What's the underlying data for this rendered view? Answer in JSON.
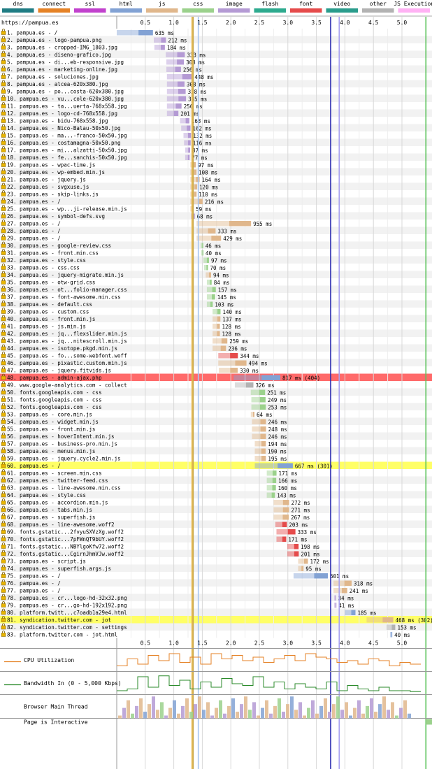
{
  "legend": [
    {
      "label": "dns",
      "color": "#1f7c83"
    },
    {
      "label": "connect",
      "color": "#e58226"
    },
    {
      "label": "ssl",
      "color": "#c141cd"
    },
    {
      "label": "html",
      "color": "#82a2d4"
    },
    {
      "label": "js",
      "color": "#e0b78c"
    },
    {
      "label": "css",
      "color": "#9bd18c"
    },
    {
      "label": "image",
      "color": "#b49ad4"
    },
    {
      "label": "flash",
      "color": "#2daa8e"
    },
    {
      "label": "font",
      "color": "#e54b4b"
    },
    {
      "label": "video",
      "color": "#2a9c8c"
    },
    {
      "label": "other",
      "color": "#b2b2b2"
    },
    {
      "label": "JS Execution",
      "color": "#ffb2f4"
    }
  ],
  "page_url": "https://pampua.es",
  "bottom_labels": {
    "cpu": "CPU Utilization",
    "bandwidth": "Bandwidth In (0 - 5,000 Kbps)",
    "main_thread": "Browser Main Thread",
    "interactive": "Page is Interactive"
  },
  "chart_data": {
    "type": "waterfall",
    "x_unit": "seconds",
    "x_ticks": [
      "0.5",
      "1.0",
      "1.5",
      "2.0",
      "2.5",
      "3.0",
      "3.5",
      "4.0",
      "4.5",
      "5.0"
    ],
    "xlim": [
      0,
      5.18
    ],
    "markers": [
      {
        "name": "start render",
        "t": 1.32,
        "color": "#e8b84a"
      },
      {
        "name": "dom interactive",
        "t": 1.34,
        "color": "#c9a84a"
      },
      {
        "name": "dom content loaded",
        "t": 1.43,
        "color": "#a7c6f0"
      },
      {
        "name": "document complete",
        "t": 3.75,
        "color": "#2b2bb0"
      },
      {
        "name": "onload",
        "t": 3.9,
        "color": "#a7a0f0"
      },
      {
        "name": "fully loaded",
        "t": 5.42,
        "color": "#5ac25a"
      }
    ],
    "requests": [
      {
        "n": 1,
        "label": "pampua.es - /",
        "type": "html",
        "start": 0.0,
        "dur": 0.635,
        "text": "635 ms"
      },
      {
        "n": 2,
        "label": "pampua.es - logo-pampua.png",
        "type": "image",
        "start": 0.65,
        "dur": 0.212,
        "text": "212 ms"
      },
      {
        "n": 3,
        "label": "pampua.es - cropped-IMG_1803.jpg",
        "type": "image",
        "start": 0.66,
        "dur": 0.184,
        "text": "184 ms"
      },
      {
        "n": 4,
        "label": "pampua.es - diseno-grafico.jpg",
        "type": "image",
        "start": 0.86,
        "dur": 0.333,
        "text": "333 ms"
      },
      {
        "n": 5,
        "label": "pampua.es - di...eb-responsive.jpg",
        "type": "image",
        "start": 0.87,
        "dur": 0.308,
        "text": "308 ms"
      },
      {
        "n": 6,
        "label": "pampua.es - marketing-online.jpg",
        "type": "image",
        "start": 0.87,
        "dur": 0.256,
        "text": "256 ms"
      },
      {
        "n": 7,
        "label": "pampua.es - soluciones.jpg",
        "type": "image",
        "start": 0.88,
        "dur": 0.448,
        "text": "448 ms"
      },
      {
        "n": 8,
        "label": "pampua.es - alcea-620x380.jpg",
        "type": "image",
        "start": 0.88,
        "dur": 0.308,
        "text": "308 ms"
      },
      {
        "n": 9,
        "label": "pampua.es - po...costa-620x380.jpg",
        "type": "image",
        "start": 0.88,
        "dur": 0.328,
        "text": "328 ms"
      },
      {
        "n": 10,
        "label": "pampua.es - vu...cole-620x380.jpg",
        "type": "image",
        "start": 0.88,
        "dur": 0.335,
        "text": "335 ms"
      },
      {
        "n": 11,
        "label": "pampua.es - ta...uerta-768x558.jpg",
        "type": "image",
        "start": 0.88,
        "dur": 0.256,
        "text": "256 ms"
      },
      {
        "n": 12,
        "label": "pampua.es - logo-cd-768x558.jpg",
        "type": "image",
        "start": 0.88,
        "dur": 0.201,
        "text": "201 ms"
      },
      {
        "n": 13,
        "label": "pampua.es - bidu-768x558.jpg",
        "type": "image",
        "start": 1.11,
        "dur": 0.163,
        "text": "163 ms"
      },
      {
        "n": 14,
        "label": "pampua.es - Nico-Balau-50x50.jpg",
        "type": "image",
        "start": 1.13,
        "dur": 0.162,
        "text": "162 ms"
      },
      {
        "n": 15,
        "label": "pampua.es - ma...-franco-50x50.jpg",
        "type": "image",
        "start": 1.17,
        "dur": 0.132,
        "text": "132 ms"
      },
      {
        "n": 16,
        "label": "pampua.es - costamagna-50x50.png",
        "type": "image",
        "start": 1.18,
        "dur": 0.116,
        "text": "116 ms"
      },
      {
        "n": 17,
        "label": "pampua.es - mi...alzatti-50x50.jpg",
        "type": "image",
        "start": 1.2,
        "dur": 0.087,
        "text": "87 ms"
      },
      {
        "n": 18,
        "label": "pampua.es - fe...sanchis-50x50.jpg",
        "type": "image",
        "start": 1.2,
        "dur": 0.077,
        "text": "77 ms"
      },
      {
        "n": 19,
        "label": "pampua.es - wpac-time.js",
        "type": "js",
        "start": 1.29,
        "dur": 0.097,
        "text": "97 ms"
      },
      {
        "n": 20,
        "label": "pampua.es - wp-embed.min.js",
        "type": "js",
        "start": 1.29,
        "dur": 0.108,
        "text": "108 ms"
      },
      {
        "n": 21,
        "label": "pampua.es - jquery.js",
        "type": "js",
        "start": 1.29,
        "dur": 0.164,
        "text": "164 ms"
      },
      {
        "n": 22,
        "label": "pampua.es - svgxuse.js",
        "type": "js",
        "start": 1.29,
        "dur": 0.12,
        "text": "120 ms"
      },
      {
        "n": 23,
        "label": "pampua.es - skip-links.js",
        "type": "js",
        "start": 1.29,
        "dur": 0.11,
        "text": "110 ms"
      },
      {
        "n": 24,
        "label": "pampua.es - /",
        "type": "js",
        "start": 1.29,
        "dur": 0.216,
        "text": "216 ms"
      },
      {
        "n": 25,
        "label": "pampua.es - wp...ji-release.min.js",
        "type": "js",
        "start": 1.29,
        "dur": 0.059,
        "text": "59 ms"
      },
      {
        "n": 26,
        "label": "pampua.es - symbol-defs.svg",
        "type": "image",
        "start": 1.3,
        "dur": 0.068,
        "text": "68 ms"
      },
      {
        "n": 27,
        "label": "pampua.es - /",
        "type": "js",
        "start": 1.4,
        "dur": 0.955,
        "text": "955 ms"
      },
      {
        "n": 28,
        "label": "pampua.es - /",
        "type": "js",
        "start": 1.4,
        "dur": 0.333,
        "text": "333 ms"
      },
      {
        "n": 29,
        "label": "pampua.es - /",
        "type": "js",
        "start": 1.4,
        "dur": 0.429,
        "text": "429 ms"
      },
      {
        "n": 30,
        "label": "pampua.es - google-review.css",
        "type": "css",
        "start": 1.47,
        "dur": 0.046,
        "text": "46 ms"
      },
      {
        "n": 31,
        "label": "pampua.es - front.min.css",
        "type": "css",
        "start": 1.48,
        "dur": 0.04,
        "text": "40 ms"
      },
      {
        "n": 32,
        "label": "pampua.es - style.css",
        "type": "css",
        "start": 1.52,
        "dur": 0.097,
        "text": "97 ms"
      },
      {
        "n": 33,
        "label": "pampua.es - css.css",
        "type": "css",
        "start": 1.53,
        "dur": 0.07,
        "text": "70 ms"
      },
      {
        "n": 34,
        "label": "pampua.es - jquery-migrate.min.js",
        "type": "js",
        "start": 1.56,
        "dur": 0.094,
        "text": "94 ms"
      },
      {
        "n": 35,
        "label": "pampua.es - otw-grid.css",
        "type": "css",
        "start": 1.58,
        "dur": 0.084,
        "text": "84 ms"
      },
      {
        "n": 36,
        "label": "pampua.es - ot...folio-manager.css",
        "type": "css",
        "start": 1.58,
        "dur": 0.157,
        "text": "157 ms"
      },
      {
        "n": 37,
        "label": "pampua.es - font-awesome.min.css",
        "type": "css",
        "start": 1.58,
        "dur": 0.145,
        "text": "145 ms"
      },
      {
        "n": 38,
        "label": "pampua.es - default.css",
        "type": "css",
        "start": 1.58,
        "dur": 0.103,
        "text": "103 ms"
      },
      {
        "n": 39,
        "label": "pampua.es - custom.css",
        "type": "css",
        "start": 1.68,
        "dur": 0.14,
        "text": "140 ms"
      },
      {
        "n": 40,
        "label": "pampua.es - front.min.js",
        "type": "js",
        "start": 1.68,
        "dur": 0.137,
        "text": "137 ms"
      },
      {
        "n": 41,
        "label": "pampua.es - js.min.js",
        "type": "js",
        "start": 1.68,
        "dur": 0.128,
        "text": "128 ms"
      },
      {
        "n": 42,
        "label": "pampua.es - jq...flexslider.min.js",
        "type": "js",
        "start": 1.68,
        "dur": 0.128,
        "text": "128 ms"
      },
      {
        "n": 43,
        "label": "pampua.es - jq...nitescroll.min.js",
        "type": "js",
        "start": 1.68,
        "dur": 0.259,
        "text": "259 ms"
      },
      {
        "n": 44,
        "label": "pampua.es - isotope.pkgd.min.js",
        "type": "js",
        "start": 1.68,
        "dur": 0.236,
        "text": "236 ms"
      },
      {
        "n": 45,
        "label": "pampua.es - fo...some-webfont.woff",
        "type": "font",
        "start": 1.78,
        "dur": 0.344,
        "text": "344 ms"
      },
      {
        "n": 46,
        "label": "pampua.es - pixastic.custom.min.js",
        "type": "js",
        "start": 1.78,
        "dur": 0.494,
        "text": "494 ms"
      },
      {
        "n": 47,
        "label": "pampua.es - jquery.fitvids.js",
        "type": "js",
        "start": 1.79,
        "dur": 0.33,
        "text": "330 ms"
      },
      {
        "n": 48,
        "label": "pampua.es - admin-ajax.php",
        "type": "html",
        "start": 2.05,
        "dur": 0.817,
        "text": "817 ms (404)",
        "highlight": "error"
      },
      {
        "n": 49,
        "label": "www.google-analytics.com - collect",
        "type": "other",
        "start": 2.07,
        "dur": 0.326,
        "text": "326 ms"
      },
      {
        "n": 50,
        "label": "fonts.googleapis.com - css",
        "type": "css",
        "start": 2.35,
        "dur": 0.251,
        "text": "251 ms"
      },
      {
        "n": 51,
        "label": "fonts.googleapis.com - css",
        "type": "css",
        "start": 2.36,
        "dur": 0.249,
        "text": "249 ms"
      },
      {
        "n": 52,
        "label": "fonts.googleapis.com - css",
        "type": "css",
        "start": 2.36,
        "dur": 0.253,
        "text": "253 ms"
      },
      {
        "n": 53,
        "label": "pampua.es - core.min.js",
        "type": "js",
        "start": 2.35,
        "dur": 0.064,
        "text": "64 ms"
      },
      {
        "n": 54,
        "label": "pampua.es - widget.min.js",
        "type": "js",
        "start": 2.37,
        "dur": 0.246,
        "text": "246 ms"
      },
      {
        "n": 55,
        "label": "pampua.es - front.min.js",
        "type": "js",
        "start": 2.37,
        "dur": 0.248,
        "text": "248 ms"
      },
      {
        "n": 56,
        "label": "pampua.es - hoverIntent.min.js",
        "type": "js",
        "start": 2.37,
        "dur": 0.246,
        "text": "246 ms"
      },
      {
        "n": 57,
        "label": "pampua.es - business-pro.min.js",
        "type": "js",
        "start": 2.42,
        "dur": 0.194,
        "text": "194 ms"
      },
      {
        "n": 58,
        "label": "pampua.es - menus.min.js",
        "type": "js",
        "start": 2.42,
        "dur": 0.19,
        "text": "190 ms"
      },
      {
        "n": 59,
        "label": "pampua.es - jquery.cycle2.min.js",
        "type": "js",
        "start": 2.42,
        "dur": 0.195,
        "text": "195 ms"
      },
      {
        "n": 60,
        "label": "pampua.es - /",
        "type": "html",
        "start": 2.42,
        "dur": 0.667,
        "text": "667 ms (301)",
        "highlight": "redirect"
      },
      {
        "n": 61,
        "label": "pampua.es - screen.min.css",
        "type": "css",
        "start": 2.63,
        "dur": 0.171,
        "text": "171 ms"
      },
      {
        "n": 62,
        "label": "pampua.es - twitter-feed.css",
        "type": "css",
        "start": 2.63,
        "dur": 0.166,
        "text": "166 ms"
      },
      {
        "n": 63,
        "label": "pampua.es - line-awesome.min.css",
        "type": "css",
        "start": 2.63,
        "dur": 0.16,
        "text": "160 ms"
      },
      {
        "n": 64,
        "label": "pampua.es - style.css",
        "type": "css",
        "start": 2.63,
        "dur": 0.143,
        "text": "143 ms"
      },
      {
        "n": 65,
        "label": "pampua.es - accordion.min.js",
        "type": "js",
        "start": 2.75,
        "dur": 0.272,
        "text": "272 ms"
      },
      {
        "n": 66,
        "label": "pampua.es - tabs.min.js",
        "type": "js",
        "start": 2.75,
        "dur": 0.271,
        "text": "271 ms"
      },
      {
        "n": 67,
        "label": "pampua.es - superfish.js",
        "type": "js",
        "start": 2.75,
        "dur": 0.267,
        "text": "267 ms"
      },
      {
        "n": 68,
        "label": "pampua.es - line-awesome.woff2",
        "type": "font",
        "start": 2.78,
        "dur": 0.203,
        "text": "203 ms"
      },
      {
        "n": 69,
        "label": "fonts.gstatic...2fvyuSXVzXg.woff2",
        "type": "font",
        "start": 2.8,
        "dur": 0.333,
        "text": "333 ms"
      },
      {
        "n": 70,
        "label": "fonts.gstatic...7pFWnQT9bUY.woff2",
        "type": "font",
        "start": 2.8,
        "dur": 0.171,
        "text": "171 ms"
      },
      {
        "n": 71,
        "label": "fonts.gstatic...NBYlgoKfw72.woff2",
        "type": "font",
        "start": 2.99,
        "dur": 0.198,
        "text": "198 ms"
      },
      {
        "n": 72,
        "label": "fonts.gstatic...CgirnJhmVJw.woff2",
        "type": "font",
        "start": 2.99,
        "dur": 0.201,
        "text": "201 ms"
      },
      {
        "n": 73,
        "label": "pampua.es - script.js",
        "type": "js",
        "start": 3.18,
        "dur": 0.172,
        "text": "172 ms"
      },
      {
        "n": 74,
        "label": "pampua.es - superfish.args.js",
        "type": "js",
        "start": 3.18,
        "dur": 0.095,
        "text": "95 ms"
      },
      {
        "n": 75,
        "label": "pampua.es - /",
        "type": "html",
        "start": 3.1,
        "dur": 0.601,
        "text": "601 ms"
      },
      {
        "n": 76,
        "label": "pampua.es - /",
        "type": "js",
        "start": 3.8,
        "dur": 0.318,
        "text": "318 ms"
      },
      {
        "n": 77,
        "label": "pampua.es - /",
        "type": "js",
        "start": 3.8,
        "dur": 0.241,
        "text": "241 ms"
      },
      {
        "n": 78,
        "label": "pampua.es - cr...logo-hd-32x32.png",
        "type": "image",
        "start": 3.81,
        "dur": 0.034,
        "text": "34 ms"
      },
      {
        "n": 79,
        "label": "pampua.es - cr...go-hd-192x192.png",
        "type": "image",
        "start": 3.81,
        "dur": 0.041,
        "text": "41 ms"
      },
      {
        "n": 80,
        "label": "platform.twitt...c7oadb1a29e4.html",
        "type": "html",
        "start": 4.0,
        "dur": 0.185,
        "text": "185 ms"
      },
      {
        "n": 81,
        "label": "syndication.twitter.com - jot",
        "type": "js",
        "start": 4.38,
        "dur": 0.468,
        "text": "468 ms (302)",
        "highlight": "redirect"
      },
      {
        "n": 82,
        "label": "syndication.twitter.com - settings",
        "type": "other",
        "start": 4.73,
        "dur": 0.153,
        "text": "153 ms"
      },
      {
        "n": 83,
        "label": "platform.twitter.com - jot.html",
        "type": "html",
        "start": 4.79,
        "dur": 0.04,
        "text": "40 ms"
      }
    ]
  }
}
